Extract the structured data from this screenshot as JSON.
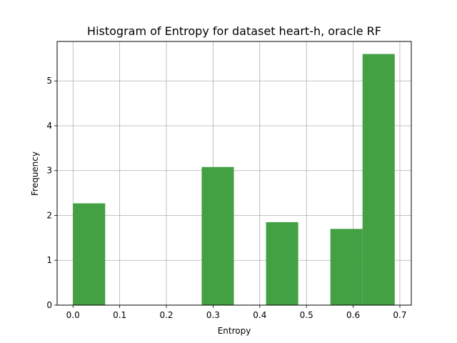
{
  "chart_data": {
    "type": "bar",
    "title": "Histogram of Entropy for dataset heart-h, oracle RF",
    "xlabel": "Entropy",
    "ylabel": "Frequency",
    "xlim": [
      -0.034,
      0.7245
    ],
    "ylim": [
      0,
      5.88
    ],
    "grid": true,
    "bar_color": "#43a043",
    "xticks": [
      0.0,
      0.1,
      0.2,
      0.3,
      0.4,
      0.5,
      0.6,
      0.7
    ],
    "xtick_labels": [
      "0.0",
      "0.1",
      "0.2",
      "0.3",
      "0.4",
      "0.5",
      "0.6",
      "0.7"
    ],
    "yticks": [
      0,
      1,
      2,
      3,
      4,
      5
    ],
    "ytick_labels": [
      "0",
      "1",
      "2",
      "3",
      "4",
      "5"
    ],
    "bins": [
      {
        "x0": 0.0,
        "x1": 0.0689,
        "value": 2.27
      },
      {
        "x0": 0.0689,
        "x1": 0.1378,
        "value": 0
      },
      {
        "x0": 0.1378,
        "x1": 0.2067,
        "value": 0
      },
      {
        "x0": 0.2067,
        "x1": 0.2756,
        "value": 0
      },
      {
        "x0": 0.2756,
        "x1": 0.3445,
        "value": 3.08
      },
      {
        "x0": 0.3445,
        "x1": 0.4134,
        "value": 0
      },
      {
        "x0": 0.4134,
        "x1": 0.4823,
        "value": 1.85
      },
      {
        "x0": 0.4823,
        "x1": 0.5512,
        "value": 0
      },
      {
        "x0": 0.5512,
        "x1": 0.6201,
        "value": 1.7
      },
      {
        "x0": 0.6201,
        "x1": 0.689,
        "value": 5.6
      }
    ]
  }
}
